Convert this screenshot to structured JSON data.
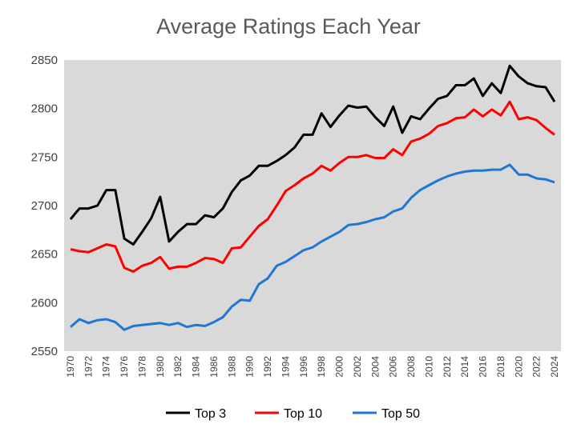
{
  "chart_data": {
    "type": "line",
    "title": "Average Ratings Each Year",
    "xlabel": "",
    "ylabel": "",
    "ylim": [
      2550,
      2850
    ],
    "yticks": [
      2550,
      2600,
      2650,
      2700,
      2750,
      2800,
      2850
    ],
    "x": [
      1970,
      1971,
      1972,
      1973,
      1974,
      1975,
      1976,
      1977,
      1978,
      1979,
      1980,
      1981,
      1982,
      1983,
      1984,
      1985,
      1986,
      1987,
      1988,
      1989,
      1990,
      1991,
      1992,
      1993,
      1994,
      1995,
      1996,
      1997,
      1998,
      1999,
      2000,
      2001,
      2002,
      2003,
      2004,
      2005,
      2006,
      2007,
      2008,
      2009,
      2010,
      2011,
      2012,
      2013,
      2014,
      2015,
      2016,
      2017,
      2018,
      2019,
      2020,
      2021,
      2022,
      2023,
      2024
    ],
    "xtick_labels": [
      "1970",
      "1972",
      "1974",
      "1976",
      "1978",
      "1980",
      "1982",
      "1984",
      "1986",
      "1988",
      "1990",
      "1992",
      "1994",
      "1996",
      "1998",
      "2000",
      "2002",
      "2004",
      "2006",
      "2008",
      "2010",
      "2012",
      "2014",
      "2016",
      "2018",
      "2020",
      "2022",
      "2024"
    ],
    "grid": false,
    "legend_position": "bottom",
    "series": [
      {
        "name": "Top 3",
        "color": "#000000",
        "values": [
          2686,
          2697,
          2697,
          2700,
          2716,
          2716,
          2666,
          2660,
          2673,
          2687,
          2709,
          2663,
          2673,
          2681,
          2681,
          2690,
          2688,
          2697,
          2714,
          2726,
          2731,
          2741,
          2741,
          2746,
          2752,
          2760,
          2773,
          2773,
          2795,
          2781,
          2793,
          2803,
          2801,
          2802,
          2791,
          2782,
          2802,
          2775,
          2792,
          2789,
          2800,
          2810,
          2813,
          2824,
          2824,
          2831,
          2813,
          2826,
          2816,
          2844,
          2833,
          2826,
          2823,
          2822,
          2807
        ]
      },
      {
        "name": "Top 10",
        "color": "#ff0000",
        "values": [
          2655,
          2653,
          2652,
          2656,
          2660,
          2658,
          2636,
          2632,
          2638,
          2641,
          2647,
          2635,
          2637,
          2637,
          2641,
          2646,
          2645,
          2641,
          2656,
          2657,
          2668,
          2679,
          2686,
          2700,
          2715,
          2721,
          2728,
          2733,
          2741,
          2736,
          2744,
          2750,
          2750,
          2752,
          2749,
          2749,
          2758,
          2752,
          2766,
          2769,
          2774,
          2782,
          2785,
          2790,
          2791,
          2799,
          2792,
          2799,
          2793,
          2807,
          2789,
          2791,
          2788,
          2780,
          2773
        ]
      },
      {
        "name": "Top 50",
        "color": "#1f77d4",
        "values": [
          2575,
          2583,
          2579,
          2582,
          2583,
          2580,
          2572,
          2576,
          2577,
          2578,
          2579,
          2577,
          2579,
          2575,
          2577,
          2576,
          2580,
          2585,
          2596,
          2603,
          2602,
          2619,
          2625,
          2638,
          2642,
          2648,
          2654,
          2657,
          2663,
          2668,
          2673,
          2680,
          2681,
          2683,
          2686,
          2688,
          2694,
          2697,
          2708,
          2716,
          2721,
          2726,
          2730,
          2733,
          2735,
          2736,
          2736,
          2737,
          2737,
          2742,
          2732,
          2732,
          2728,
          2727,
          2724
        ]
      }
    ]
  }
}
